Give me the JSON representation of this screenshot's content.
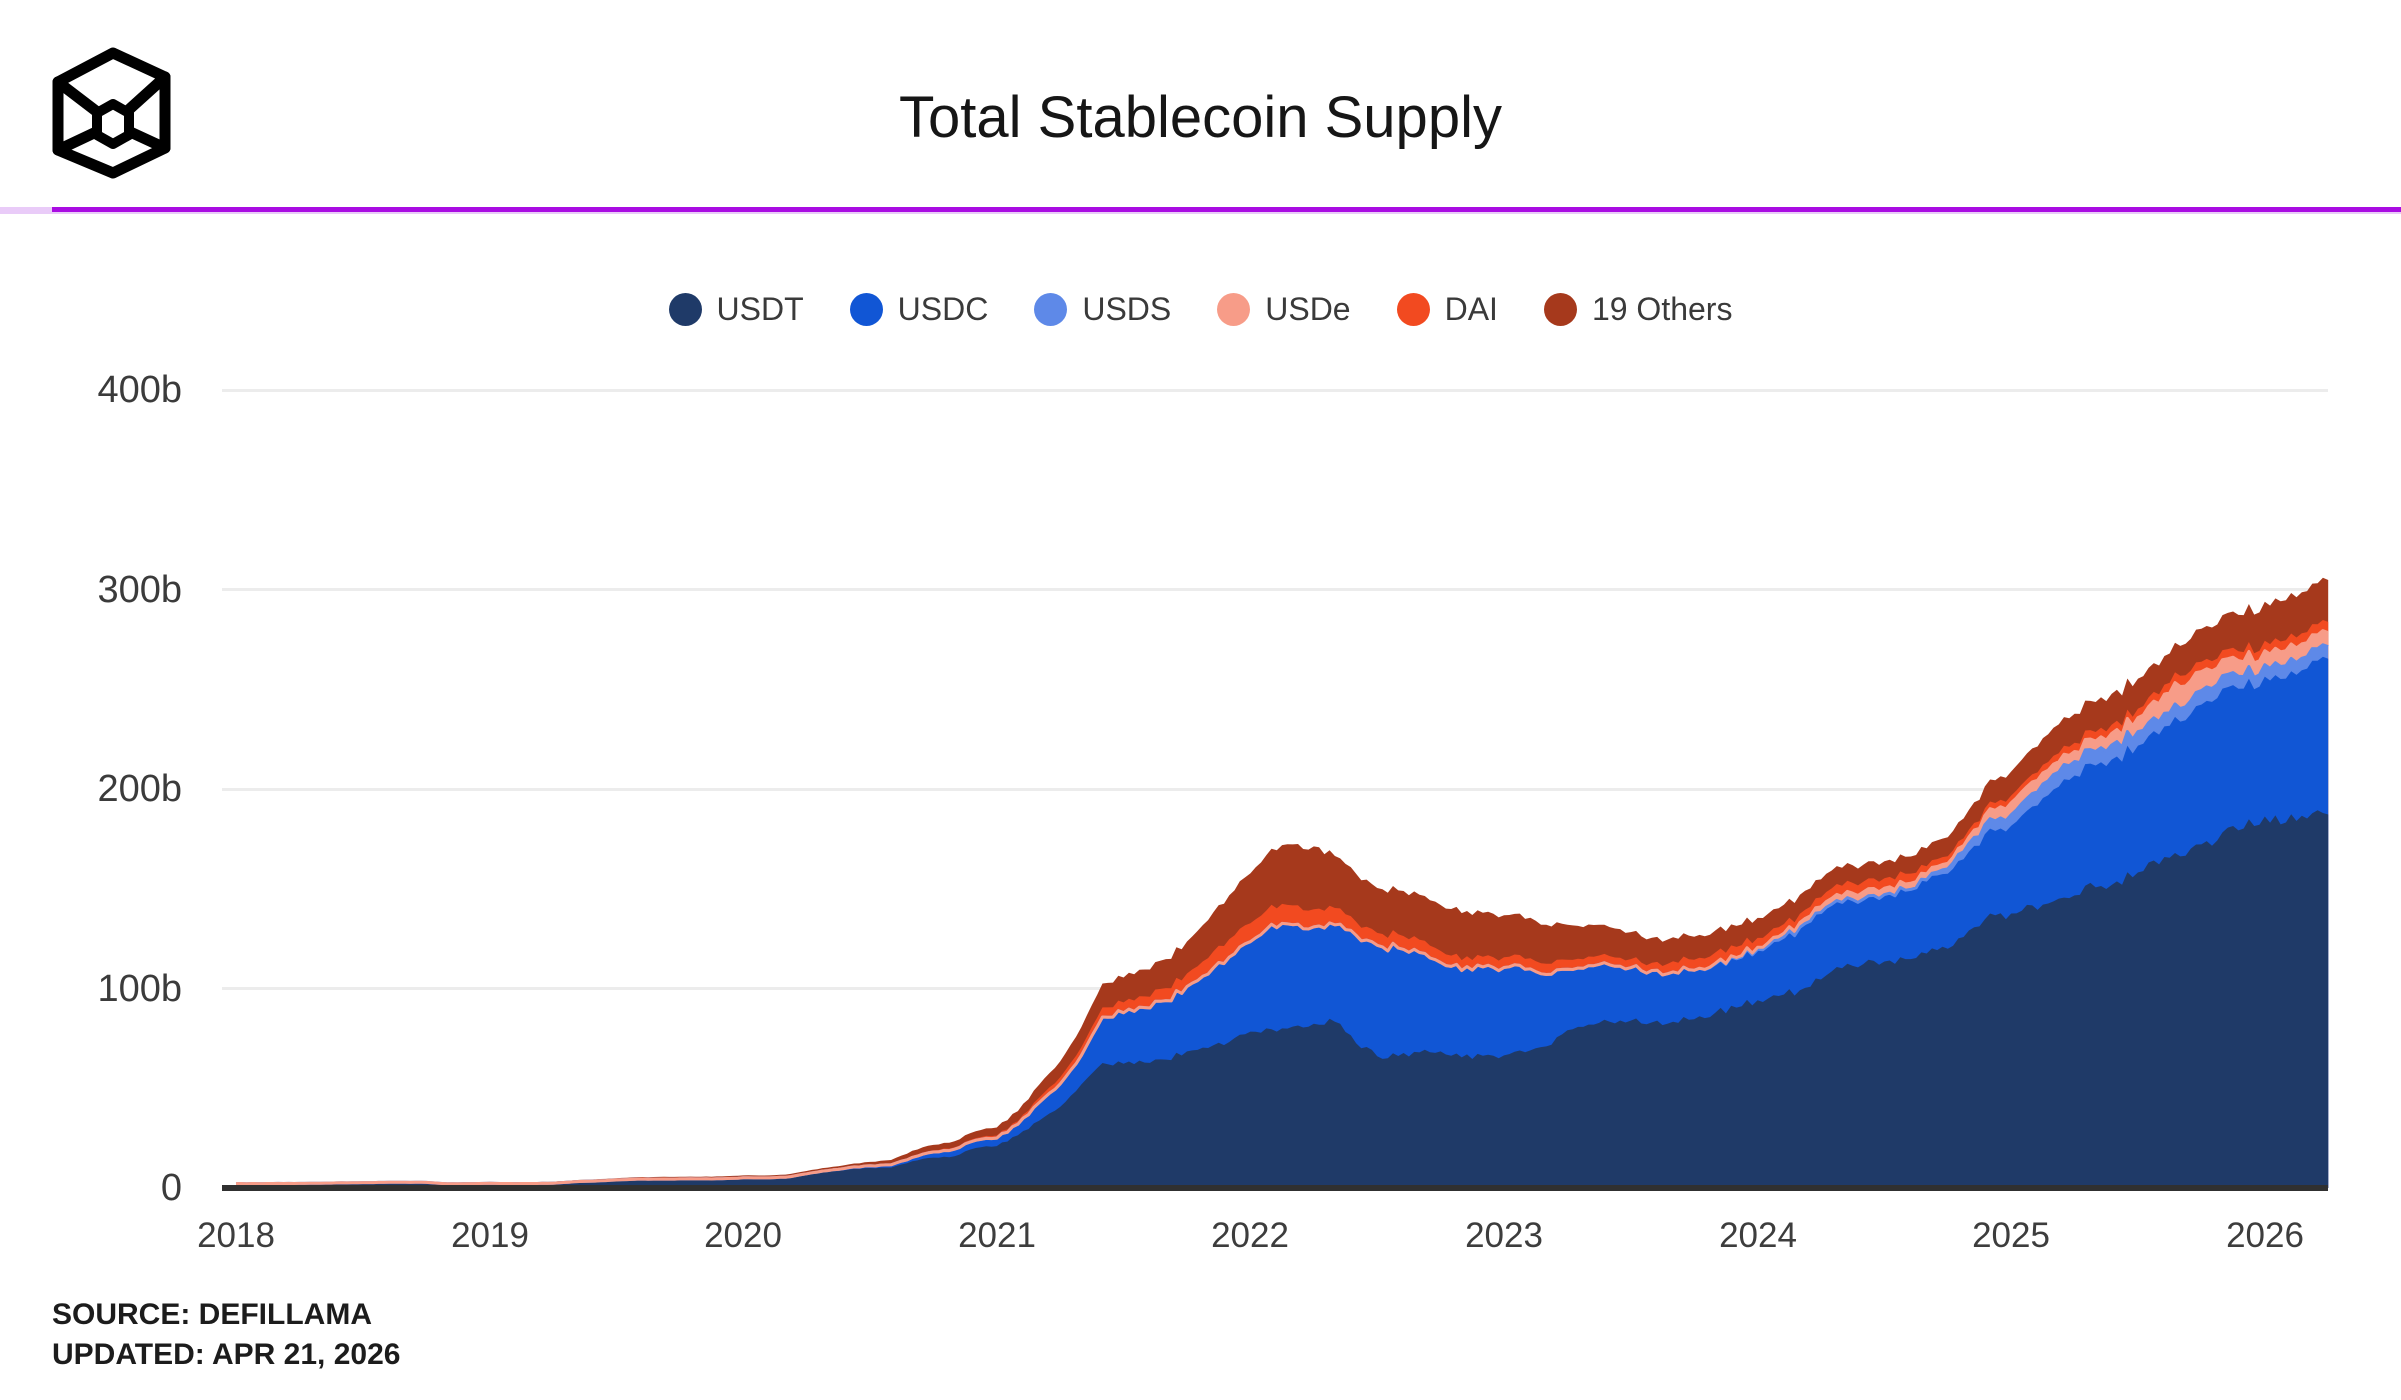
{
  "header": {
    "title": "Total Stablecoin Supply"
  },
  "footer": {
    "source_line": "SOURCE: DEFILLAMA",
    "updated_line": "UPDATED: APR 21, 2026"
  },
  "colors": {
    "accent_line": "#A90CE2",
    "accent_line_light": "#E9CBF8",
    "grid": "#ECECEC",
    "axis_baseline": "#303030",
    "axis_text": "#3b3b3b",
    "title_text": "#161616"
  },
  "chart_data": {
    "type": "area",
    "stacked": true,
    "title": "Total Stablecoin Supply",
    "unit": "billions of USD",
    "x_start_year": 2018,
    "points_per_year": 12,
    "x_end_label": "Apr 2026",
    "xlim": [
      2018,
      2026.25
    ],
    "ylim": [
      0,
      400
    ],
    "grid": true,
    "legend_position": "top",
    "x_tick_labels": [
      "2018",
      "2019",
      "2020",
      "2021",
      "2022",
      "2023",
      "2024",
      "2025",
      "2026"
    ],
    "y_tick_labels": [
      "400b",
      "300b",
      "200b",
      "100b",
      "0"
    ],
    "y_tick_values": [
      400,
      300,
      200,
      100,
      0
    ],
    "series": [
      {
        "name": "USDT",
        "color": "#1F3A68",
        "values": [
          2.2,
          2.2,
          2.3,
          2.3,
          2.4,
          2.6,
          2.7,
          2.8,
          2.8,
          2.7,
          1.9,
          1.9,
          2.0,
          2.0,
          2.0,
          2.1,
          2.8,
          3.1,
          3.6,
          4.0,
          4.0,
          4.1,
          4.1,
          4.1,
          4.6,
          4.6,
          4.8,
          6.4,
          8.0,
          9.2,
          10.0,
          10.2,
          13.4,
          15.2,
          15.9,
          20.0,
          21.0,
          26.4,
          33.7,
          40.6,
          51.8,
          62.6,
          62.2,
          62.8,
          64.3,
          68.4,
          70.1,
          73.1,
          78.3,
          79.5,
          80.8,
          82.2,
          83.2,
          72.5,
          66.0,
          66.1,
          67.9,
          68.4,
          65.4,
          66.2,
          66.4,
          68.0,
          70.9,
          79.0,
          81.8,
          83.2,
          83.8,
          82.9,
          83.2,
          84.5,
          87.7,
          90.3,
          94.0,
          96.1,
          99.0,
          104.4,
          110.0,
          112.1,
          113.4,
          114.6,
          117.4,
          119.8,
          128.9,
          137.4,
          137.4,
          141.5,
          143.5,
          146.5,
          150.5,
          153.5,
          158.0,
          162.0,
          166.0,
          172.0,
          178.0,
          180.0,
          186.0,
          183.0,
          185.0,
          187.0
        ]
      },
      {
        "name": "USDC",
        "color": "#1156D5",
        "values": [
          0,
          0,
          0,
          0,
          0,
          0,
          0,
          0,
          0.1,
          0.1,
          0.2,
          0.3,
          0.35,
          0.25,
          0.25,
          0.3,
          0.3,
          0.35,
          0.4,
          0.45,
          0.45,
          0.45,
          0.45,
          0.5,
          0.5,
          0.45,
          0.6,
          0.7,
          0.7,
          1.0,
          1.1,
          1.4,
          1.9,
          2.8,
          3.5,
          3.9,
          4.0,
          5.5,
          9.0,
          11.5,
          14.5,
          23.0,
          25.5,
          27.5,
          29.5,
          32.5,
          37.0,
          42.5,
          45.0,
          52.5,
          51.0,
          48.5,
          48.5,
          54.0,
          55.5,
          54.0,
          50.0,
          44.5,
          43.5,
          44.5,
          44.0,
          41.5,
          36.0,
          30.5,
          29.5,
          28.5,
          26.5,
          26.0,
          25.0,
          24.5,
          24.5,
          24.5,
          25.5,
          28.0,
          31.5,
          33.5,
          33.0,
          32.5,
          33.5,
          34.5,
          36.0,
          37.5,
          39.5,
          42.5,
          44.0,
          49.5,
          56.0,
          60.0,
          61.0,
          62.5,
          63.5,
          65.0,
          67.5,
          70.0,
          72.0,
          70.0,
          70.0,
          72.0,
          75.0,
          78.0
        ]
      },
      {
        "name": "USDS",
        "color": "#5E89E8",
        "values": [
          0,
          0,
          0,
          0,
          0,
          0,
          0,
          0,
          0,
          0,
          0,
          0,
          0,
          0,
          0,
          0,
          0,
          0,
          0,
          0,
          0,
          0,
          0,
          0,
          0,
          0,
          0,
          0,
          0,
          0,
          0,
          0,
          0,
          0,
          0,
          0,
          0,
          0,
          0,
          0,
          0,
          0,
          0,
          0,
          0,
          0,
          0,
          0,
          0,
          0,
          0,
          0,
          0,
          0,
          0,
          0,
          0,
          0,
          0,
          0,
          0,
          0,
          0,
          0,
          0,
          0,
          0,
          0,
          0,
          0,
          0,
          0,
          0,
          0,
          0,
          0,
          0,
          0,
          0,
          0,
          1.0,
          2.5,
          4.0,
          5.0,
          5.5,
          6.5,
          7.5,
          7.0,
          7.0,
          7.5,
          7.0,
          6.5,
          6.5,
          7.0,
          6.5,
          6.0,
          6.0,
          6.5,
          6.0,
          6.0
        ]
      },
      {
        "name": "USDe",
        "color": "#F79C88",
        "values": [
          0,
          0,
          0,
          0,
          0,
          0,
          0,
          0,
          0,
          0,
          0,
          0,
          0,
          0,
          0,
          0,
          0,
          0,
          0,
          0,
          0,
          0,
          0,
          0,
          0,
          0,
          0,
          0,
          0,
          0,
          0,
          0,
          0,
          0,
          0,
          0,
          0,
          0,
          0,
          0,
          0,
          0,
          0,
          0,
          0,
          0,
          0,
          0,
          0,
          0,
          0,
          0,
          0,
          0,
          0,
          0,
          0,
          0,
          0,
          0,
          0,
          0,
          0,
          0,
          0,
          0,
          0,
          0,
          0,
          0,
          0.3,
          0.6,
          1.0,
          1.8,
          2.4,
          2.9,
          3.0,
          3.6,
          3.2,
          3.1,
          2.9,
          2.7,
          3.3,
          5.0,
          6.0,
          5.8,
          5.2,
          5.0,
          5.3,
          6.0,
          7.0,
          9.0,
          11.0,
          9.5,
          8.0,
          7.5,
          7.0,
          7.5,
          7.0,
          7.0
        ]
      },
      {
        "name": "DAI",
        "color": "#F24A20",
        "values": [
          0.05,
          0.06,
          0.06,
          0.07,
          0.07,
          0.08,
          0.08,
          0.09,
          0.09,
          0.1,
          0.1,
          0.08,
          0.08,
          0.08,
          0.09,
          0.09,
          0.09,
          0.1,
          0.1,
          0.1,
          0.1,
          0.1,
          0.1,
          0.1,
          0.12,
          0.12,
          0.1,
          0.1,
          0.12,
          0.13,
          0.25,
          0.4,
          0.9,
          0.9,
          1.0,
          1.1,
          1.3,
          1.6,
          2.5,
          3.3,
          4.2,
          4.8,
          5.2,
          5.6,
          6.3,
          6.5,
          8.0,
          9.0,
          9.2,
          9.8,
          9.7,
          8.8,
          8.5,
          6.8,
          6.2,
          6.9,
          6.4,
          5.8,
          5.2,
          5.1,
          5.1,
          5.2,
          5.4,
          4.8,
          4.6,
          4.4,
          4.3,
          3.9,
          5.3,
          5.3,
          5.4,
          5.3,
          4.7,
          4.6,
          4.4,
          4.7,
          5.3,
          5.1,
          5.0,
          5.1,
          3.8,
          3.6,
          3.6,
          3.6,
          3.6,
          3.8,
          4.2,
          4.4,
          4.5,
          4.4,
          4.5,
          4.6,
          5.4,
          5.0,
          4.8,
          4.8,
          5.0,
          5.2,
          5.3,
          5.4
        ]
      },
      {
        "name": "19 Others",
        "color": "#A6391C",
        "values": [
          0.05,
          0.05,
          0.05,
          0.05,
          0.05,
          0.1,
          0.15,
          0.2,
          0.35,
          0.45,
          0.55,
          0.6,
          0.6,
          0.6,
          0.6,
          0.65,
          0.7,
          0.75,
          0.8,
          0.9,
          1.0,
          1.0,
          1.0,
          1.1,
          1.1,
          1.1,
          1.2,
          1.3,
          1.4,
          1.5,
          1.7,
          2.0,
          2.4,
          2.7,
          3.0,
          3.4,
          4.0,
          5.0,
          6.5,
          8.0,
          10.0,
          12.0,
          12.5,
          13.5,
          14.5,
          16.0,
          19.0,
          22.0,
          25.0,
          28.0,
          30.5,
          31.5,
          26.0,
          24.0,
          22.5,
          22.0,
          22.5,
          23.0,
          23.5,
          22.0,
          21.0,
          20.0,
          19.5,
          17.5,
          16.0,
          14.5,
          13.5,
          12.5,
          12.0,
          11.5,
          11.0,
          10.5,
          10.0,
          9.5,
          9.5,
          9.0,
          9.0,
          8.5,
          8.5,
          8.5,
          9.0,
          9.5,
          10.0,
          11.0,
          12.0,
          13.0,
          14.0,
          14.5,
          15.0,
          15.5,
          15.0,
          14.5,
          15.0,
          16.5,
          17.5,
          18.5,
          19.5,
          20.0,
          20.5,
          21.0
        ]
      }
    ]
  }
}
